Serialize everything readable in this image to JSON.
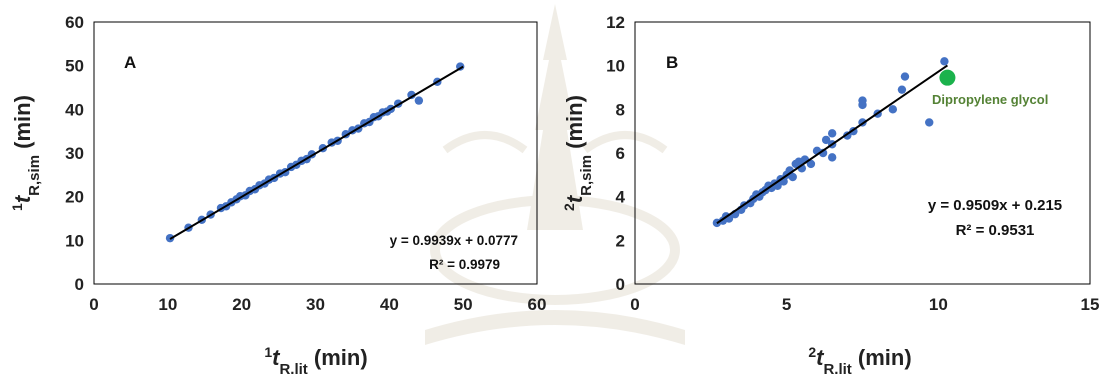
{
  "colors": {
    "points": "#4472C4",
    "fit_line": "#000000",
    "highlight": "#1BB24C",
    "annotation": "#548235"
  },
  "chart_data": [
    {
      "type": "scatter",
      "panel_label": "A",
      "xlabel": {
        "sup": "1",
        "base": "t",
        "sub": "R,lit",
        "unit": " (min)"
      },
      "ylabel": {
        "sup": "1",
        "base": "t",
        "sub": "R,sim",
        "unit": " (min)"
      },
      "xlim": [
        0,
        60
      ],
      "ylim": [
        0,
        60
      ],
      "xticks": [
        0,
        10,
        20,
        30,
        40,
        50,
        60
      ],
      "yticks": [
        0,
        10,
        20,
        30,
        40,
        50,
        60
      ],
      "grid": false,
      "equation": "y = 0.9939x + 0.0777",
      "r2": "R² = 0.9979",
      "trendline": {
        "slope": 0.9939,
        "intercept": 0.0777,
        "x_range": [
          10.3,
          50
        ]
      },
      "series": [
        {
          "values": [
            [
              10.3,
              10.5
            ],
            [
              12.8,
              12.9
            ],
            [
              14.6,
              14.7
            ],
            [
              15.8,
              15.9
            ],
            [
              17.2,
              17.4
            ],
            [
              17.9,
              17.8
            ],
            [
              18.6,
              18.7
            ],
            [
              19.3,
              19.4
            ],
            [
              19.8,
              20.1
            ],
            [
              20.5,
              20.3
            ],
            [
              21.1,
              21.3
            ],
            [
              21.8,
              21.7
            ],
            [
              22.4,
              22.6
            ],
            [
              23.1,
              23.0
            ],
            [
              23.7,
              23.9
            ],
            [
              24.4,
              24.3
            ],
            [
              25.2,
              25.3
            ],
            [
              25.9,
              25.6
            ],
            [
              26.7,
              26.8
            ],
            [
              27.4,
              27.3
            ],
            [
              28.1,
              28.2
            ],
            [
              28.8,
              28.6
            ],
            [
              29.5,
              29.7
            ],
            [
              31.0,
              31.1
            ],
            [
              32.2,
              32.4
            ],
            [
              33.0,
              32.8
            ],
            [
              34.1,
              34.3
            ],
            [
              35.0,
              35.2
            ],
            [
              35.8,
              35.6
            ],
            [
              36.6,
              36.8
            ],
            [
              37.3,
              37.1
            ],
            [
              37.9,
              38.2
            ],
            [
              38.5,
              38.4
            ],
            [
              39.1,
              39.3
            ],
            [
              39.7,
              39.5
            ],
            [
              40.2,
              40.1
            ],
            [
              41.2,
              41.3
            ],
            [
              43.0,
              43.3
            ],
            [
              44.0,
              42.0
            ],
            [
              46.5,
              46.3
            ],
            [
              49.6,
              49.8
            ]
          ]
        }
      ]
    },
    {
      "type": "scatter",
      "panel_label": "B",
      "xlabel": {
        "sup": "2",
        "base": "t",
        "sub": "R,lit",
        "unit": " (min)"
      },
      "ylabel": {
        "sup": "2",
        "base": "t",
        "sub": "R,sim",
        "unit": " (min)"
      },
      "xlim": [
        0,
        15
      ],
      "ylim": [
        0,
        12
      ],
      "xticks": [
        0,
        5,
        10,
        15
      ],
      "yticks": [
        0,
        2,
        4,
        6,
        8,
        10,
        12
      ],
      "grid": false,
      "equation": "y = 0.9509x + 0.215",
      "r2": "R² = 0.9531",
      "trendline": {
        "slope": 0.9509,
        "intercept": 0.215,
        "x_range": [
          2.7,
          10.3
        ]
      },
      "highlight_point": {
        "x": 10.3,
        "y": 9.45,
        "label": "Dipropylene glycol"
      },
      "series": [
        {
          "values": [
            [
              2.7,
              2.8
            ],
            [
              2.9,
              2.9
            ],
            [
              3.0,
              3.1
            ],
            [
              3.1,
              3.0
            ],
            [
              3.3,
              3.2
            ],
            [
              3.5,
              3.4
            ],
            [
              3.6,
              3.6
            ],
            [
              3.8,
              3.7
            ],
            [
              3.9,
              3.9
            ],
            [
              4.0,
              4.1
            ],
            [
              4.1,
              4.0
            ],
            [
              4.2,
              4.2
            ],
            [
              4.3,
              4.3
            ],
            [
              4.4,
              4.5
            ],
            [
              4.5,
              4.4
            ],
            [
              4.6,
              4.6
            ],
            [
              4.7,
              4.5
            ],
            [
              4.8,
              4.8
            ],
            [
              4.9,
              4.7
            ],
            [
              5.0,
              5.0
            ],
            [
              5.1,
              5.2
            ],
            [
              5.2,
              4.9
            ],
            [
              5.3,
              5.5
            ],
            [
              5.4,
              5.6
            ],
            [
              5.5,
              5.3
            ],
            [
              5.6,
              5.7
            ],
            [
              5.8,
              5.5
            ],
            [
              6.0,
              6.1
            ],
            [
              6.2,
              6.0
            ],
            [
              6.3,
              6.6
            ],
            [
              6.5,
              6.4
            ],
            [
              6.5,
              6.9
            ],
            [
              6.5,
              5.8
            ],
            [
              7.0,
              6.8
            ],
            [
              7.2,
              7.0
            ],
            [
              7.5,
              7.4
            ],
            [
              7.5,
              8.2
            ],
            [
              7.5,
              8.4
            ],
            [
              8.0,
              7.8
            ],
            [
              8.5,
              8.0
            ],
            [
              8.8,
              8.9
            ],
            [
              8.9,
              9.5
            ],
            [
              9.7,
              7.4
            ],
            [
              10.2,
              10.2
            ]
          ]
        }
      ]
    }
  ]
}
